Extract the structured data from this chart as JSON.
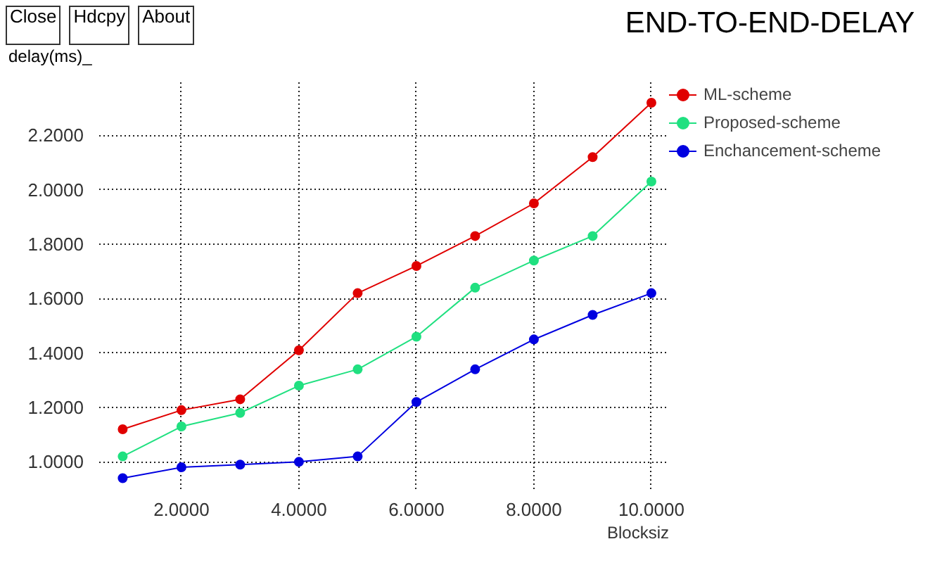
{
  "chart_data": {
    "type": "line",
    "title": "END-TO-END-DELAY",
    "xlabel": "Blocksiz",
    "ylabel": "delay(ms)_",
    "annotations": [
      "Close",
      "Hdcpy",
      "About"
    ],
    "x": [
      1,
      2,
      3,
      4,
      5,
      6,
      7,
      8,
      9,
      10
    ],
    "series": [
      {
        "name": "ML-scheme",
        "color": "#e00000",
        "values": [
          1.12,
          1.19,
          1.23,
          1.41,
          1.62,
          1.72,
          1.83,
          1.95,
          2.12,
          2.32
        ]
      },
      {
        "name": "Proposed-scheme",
        "color": "#20e080",
        "values": [
          1.02,
          1.13,
          1.18,
          1.28,
          1.34,
          1.46,
          1.64,
          1.74,
          1.83,
          2.03
        ]
      },
      {
        "name": "Enchancement-scheme",
        "color": "#0000e0",
        "values": [
          0.94,
          0.98,
          0.99,
          1.0,
          1.02,
          1.22,
          1.34,
          1.45,
          1.54,
          1.62
        ]
      }
    ],
    "xlim": [
      0.6,
      10.3
    ],
    "ylim": [
      0.9,
      2.4
    ],
    "xticks": [
      {
        "value": 2,
        "label": "2.0000"
      },
      {
        "value": 4,
        "label": "4.0000"
      },
      {
        "value": 6,
        "label": "6.0000"
      },
      {
        "value": 8,
        "label": "8.0000"
      },
      {
        "value": 10,
        "label": "10.0000"
      }
    ],
    "yticks": [
      {
        "value": 1.0,
        "label": "1.0000"
      },
      {
        "value": 1.2,
        "label": "1.2000"
      },
      {
        "value": 1.4,
        "label": "1.4000"
      },
      {
        "value": 1.6,
        "label": "1.6000"
      },
      {
        "value": 1.8,
        "label": "1.8000"
      },
      {
        "value": 2.0,
        "label": "2.0000"
      },
      {
        "value": 2.2,
        "label": "2.2000"
      }
    ],
    "grid": true,
    "legend": "top right",
    "marker": "circle",
    "line_style": "solid"
  }
}
